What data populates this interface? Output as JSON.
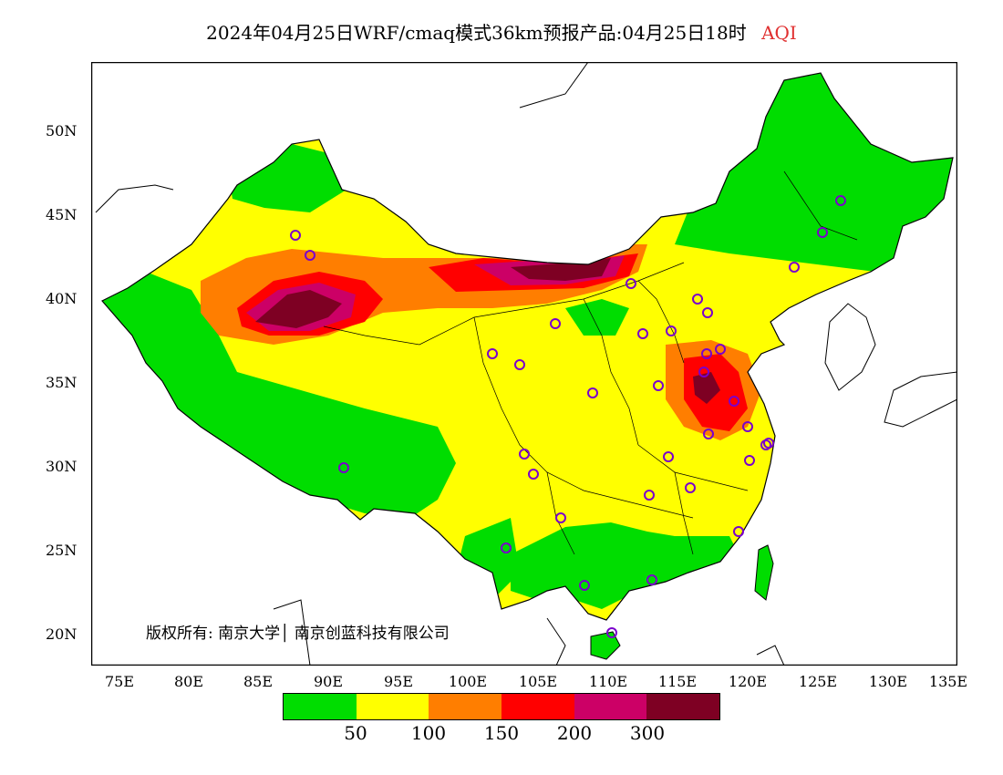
{
  "title": {
    "main": "2024年04月25日WRF/cmaq模式36km预报产品:04月25日18时",
    "variable": "AQI"
  },
  "axes": {
    "lat_labels": [
      "50N",
      "45N",
      "40N",
      "35N",
      "30N",
      "25N",
      "20N"
    ],
    "lon_labels": [
      "75E",
      "80E",
      "85E",
      "90E",
      "95E",
      "100E",
      "105E",
      "110E",
      "115E",
      "120E",
      "125E",
      "130E",
      "135E"
    ]
  },
  "copyright": "版权所有: 南京大学│ 南京创蓝科技有限公司",
  "legend": {
    "colors": [
      "#00dd00",
      "#ffff00",
      "#ff7e00",
      "#ff0000",
      "#cc0066",
      "#7e0023"
    ],
    "labels": [
      "50",
      "100",
      "150",
      "200",
      "300"
    ]
  }
}
